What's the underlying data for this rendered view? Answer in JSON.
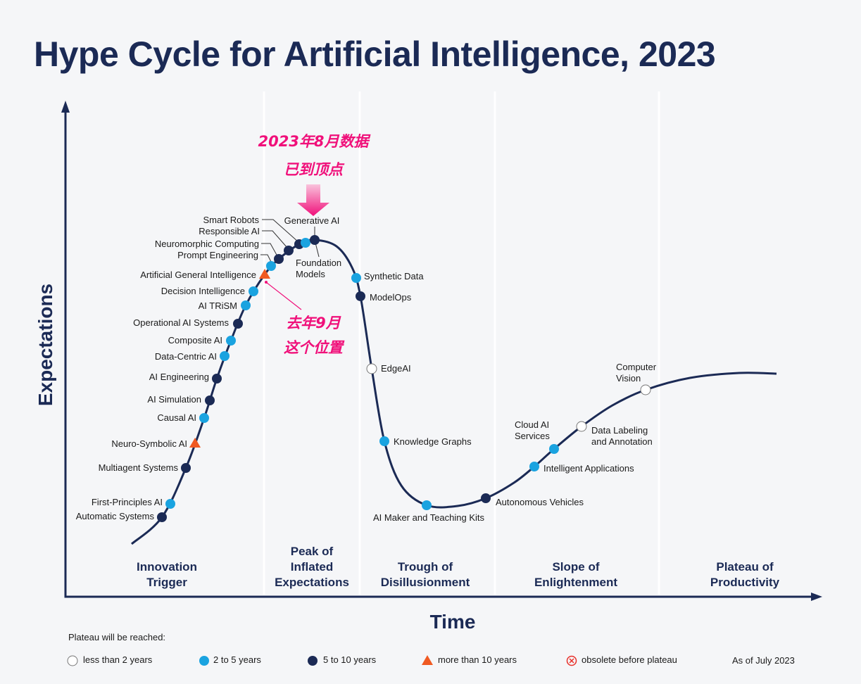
{
  "title": "Hype Cycle for Artificial Intelligence, 2023",
  "axes": {
    "y": "Expectations",
    "x": "Time"
  },
  "phases": [
    [
      "Innovation",
      "Trigger"
    ],
    [
      "Peak of",
      "Inflated",
      "Expectations"
    ],
    [
      "Trough of",
      "Disillusionment"
    ],
    [
      "Slope of",
      "Enlightenment"
    ],
    [
      "Plateau of",
      "Productivity"
    ]
  ],
  "colors": {
    "less_than_2": "#ffffff",
    "2_to_5": "#1aa3e0",
    "5_to_10": "#1b2a55",
    "more_than_10": "#f05a22",
    "obsolete": "#e8302a",
    "annotation": "#f0107a",
    "curve": "#1b2a55"
  },
  "technologies": [
    {
      "name": "Automatic Systems",
      "plateau": "5_to_10"
    },
    {
      "name": "First-Principles AI",
      "plateau": "2_to_5"
    },
    {
      "name": "Multiagent Systems",
      "plateau": "5_to_10"
    },
    {
      "name": "Neuro-Symbolic AI",
      "plateau": "more_than_10"
    },
    {
      "name": "Causal AI",
      "plateau": "2_to_5"
    },
    {
      "name": "AI Simulation",
      "plateau": "5_to_10"
    },
    {
      "name": "AI Engineering",
      "plateau": "5_to_10"
    },
    {
      "name": "Data-Centric AI",
      "plateau": "2_to_5"
    },
    {
      "name": "Composite AI",
      "plateau": "2_to_5"
    },
    {
      "name": "Operational AI Systems",
      "plateau": "5_to_10"
    },
    {
      "name": "AI TRiSM",
      "plateau": "2_to_5"
    },
    {
      "name": "Decision Intelligence",
      "plateau": "2_to_5"
    },
    {
      "name": "Artificial General Intelligence",
      "plateau": "more_than_10"
    },
    {
      "name": "Prompt Engineering",
      "plateau": "2_to_5"
    },
    {
      "name": "Neuromorphic Computing",
      "plateau": "5_to_10"
    },
    {
      "name": "Responsible AI",
      "plateau": "5_to_10"
    },
    {
      "name": "Smart Robots",
      "plateau": "5_to_10"
    },
    {
      "name": "Generative AI",
      "plateau": "2_to_5"
    },
    {
      "name": "Foundation Models",
      "plateau": "5_to_10",
      "lines": [
        "Foundation",
        "Models"
      ]
    },
    {
      "name": "Synthetic Data",
      "plateau": "2_to_5"
    },
    {
      "name": "ModelOps",
      "plateau": "5_to_10"
    },
    {
      "name": "EdgeAI",
      "plateau": "less_than_2"
    },
    {
      "name": "Knowledge Graphs",
      "plateau": "2_to_5"
    },
    {
      "name": "AI Maker and Teaching Kits",
      "plateau": "2_to_5"
    },
    {
      "name": "Autonomous Vehicles",
      "plateau": "5_to_10"
    },
    {
      "name": "Intelligent Applications",
      "plateau": "2_to_5"
    },
    {
      "name": "Cloud AI Services",
      "plateau": "2_to_5",
      "lines": [
        "Cloud AI",
        "Services"
      ]
    },
    {
      "name": "Data Labeling and Annotation",
      "plateau": "less_than_2",
      "lines": [
        "Data Labeling",
        "and Annotation"
      ]
    },
    {
      "name": "Computer Vision",
      "plateau": "less_than_2",
      "lines": [
        "Computer",
        "Vision"
      ]
    }
  ],
  "annotations": {
    "top": [
      "2023年8月数据",
      "已到顶点"
    ],
    "bottom": [
      "去年9月",
      "这个位置"
    ]
  },
  "legend": {
    "heading": "Plateau will be reached:",
    "items": [
      {
        "key": "less_than_2",
        "label": "less than 2 years"
      },
      {
        "key": "2_to_5",
        "label": "2 to 5 years"
      },
      {
        "key": "5_to_10",
        "label": "5 to 10 years"
      },
      {
        "key": "more_than_10",
        "label": "more than 10 years"
      },
      {
        "key": "obsolete",
        "label": "obsolete before plateau"
      }
    ],
    "as_of": "As of July 2023"
  }
}
